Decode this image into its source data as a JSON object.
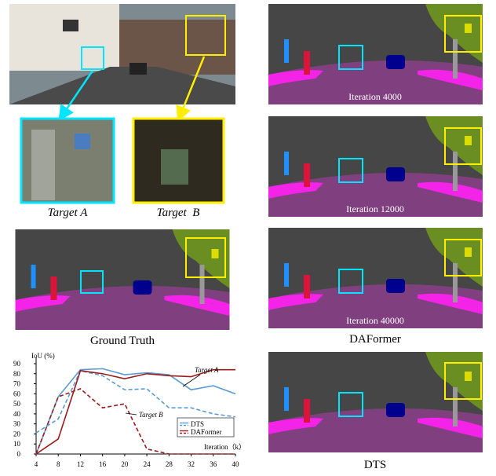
{
  "labels": {
    "target_a": "Target A",
    "target_b": "Target  B",
    "ground_truth": "Ground Truth",
    "daformer": "DAFormer",
    "dts": "DTS",
    "iter_1": "Iteration 4000",
    "iter_2": "Iteration 12000",
    "iter_3": "Iteration 40000"
  },
  "chart_data": {
    "type": "line",
    "y_label": "IoU (%)",
    "x_label": "Iteration（k）",
    "x": [
      4,
      8,
      12,
      16,
      20,
      24,
      28,
      32,
      36,
      40
    ],
    "xlim": [
      4,
      40
    ],
    "xticks": [
      4,
      8,
      12,
      16,
      20,
      24,
      28,
      32,
      36,
      40
    ],
    "ylim": [
      0,
      90
    ],
    "yticks": [
      0,
      10,
      20,
      30,
      40,
      50,
      60,
      70,
      80,
      90
    ],
    "annotations": [
      "Target A",
      "Target B"
    ],
    "series": [
      {
        "name": "DTS",
        "color": "#5b9bd5",
        "target_a": [
          0,
          57,
          84,
          85,
          79,
          81,
          79,
          64,
          68,
          60
        ],
        "target_b": [
          21,
          35,
          83,
          78,
          64,
          65,
          46,
          46,
          40,
          37
        ]
      },
      {
        "name": "DAFormer",
        "color": "#9b1c1c",
        "target_a": [
          0,
          15,
          83,
          80,
          75,
          80,
          78,
          77,
          84,
          84
        ],
        "target_b": [
          0,
          57,
          65,
          46,
          50,
          5,
          0,
          0,
          0,
          0
        ]
      }
    ]
  }
}
